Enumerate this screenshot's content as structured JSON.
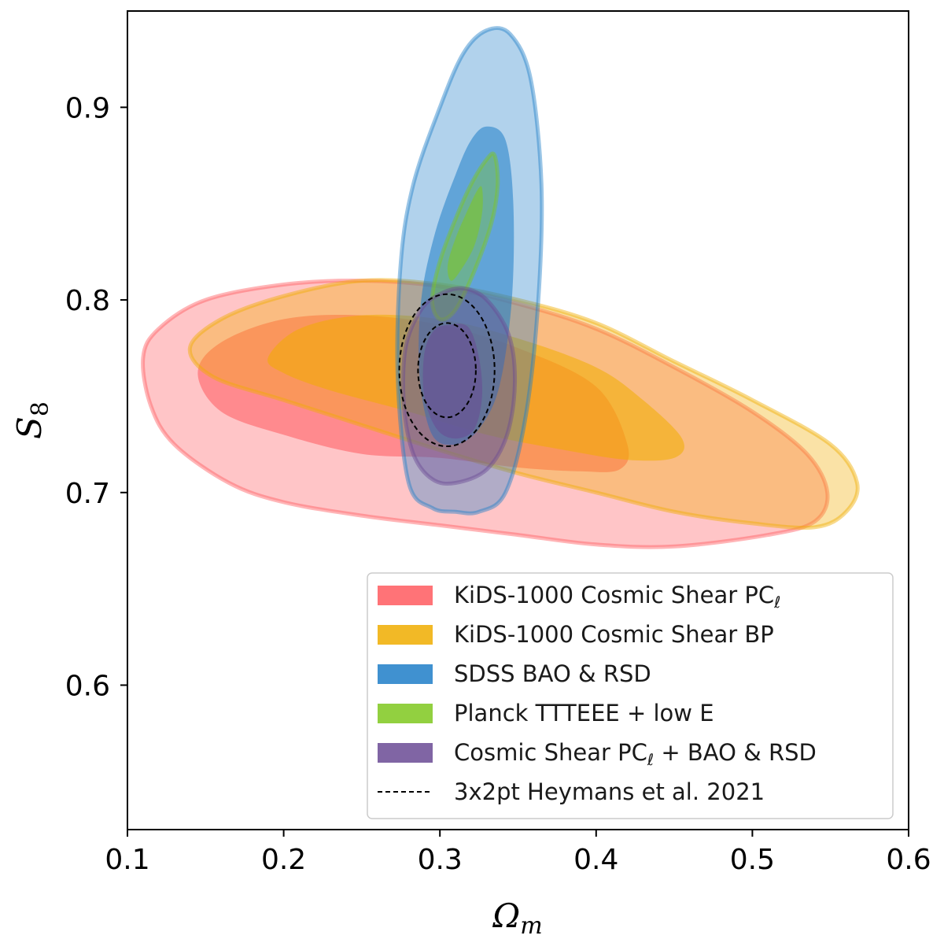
{
  "chart_data": {
    "type": "contour",
    "title": "",
    "xlabel": "Ωm",
    "ylabel": "S8",
    "xlim": [
      0.1,
      0.6
    ],
    "ylim": [
      0.525,
      0.95
    ],
    "xticks": [
      "0.1",
      "0.2",
      "0.3",
      "0.4",
      "0.5",
      "0.6"
    ],
    "yticks": [
      "0.6",
      "0.7",
      "0.8",
      "0.9"
    ],
    "grid": false,
    "legend_position": "lower-right",
    "series": [
      {
        "name": "KiDS-1000 Cosmic Shear PCℓ",
        "legend_label": "KiDS-1000 Cosmic Shear PC",
        "legend_label_suffix": "ℓ",
        "color": "#ff5a5f",
        "contours": {
          "outer": [
            [
              0.11,
              0.77
            ],
            [
              0.12,
              0.785
            ],
            [
              0.15,
              0.8
            ],
            [
              0.2,
              0.808
            ],
            [
              0.25,
              0.81
            ],
            [
              0.3,
              0.807
            ],
            [
              0.35,
              0.798
            ],
            [
              0.4,
              0.785
            ],
            [
              0.45,
              0.765
            ],
            [
              0.5,
              0.742
            ],
            [
              0.535,
              0.72
            ],
            [
              0.548,
              0.7
            ],
            [
              0.54,
              0.685
            ],
            [
              0.51,
              0.678
            ],
            [
              0.45,
              0.672
            ],
            [
              0.4,
              0.673
            ],
            [
              0.35,
              0.678
            ],
            [
              0.3,
              0.683
            ],
            [
              0.25,
              0.688
            ],
            [
              0.2,
              0.695
            ],
            [
              0.165,
              0.705
            ],
            [
              0.13,
              0.725
            ],
            [
              0.115,
              0.745
            ]
          ],
          "inner": [
            [
              0.145,
              0.762
            ],
            [
              0.16,
              0.778
            ],
            [
              0.2,
              0.79
            ],
            [
              0.25,
              0.792
            ],
            [
              0.3,
              0.787
            ],
            [
              0.35,
              0.775
            ],
            [
              0.4,
              0.755
            ],
            [
              0.42,
              0.725
            ],
            [
              0.415,
              0.712
            ],
            [
              0.39,
              0.711
            ],
            [
              0.35,
              0.713
            ],
            [
              0.3,
              0.718
            ],
            [
              0.25,
              0.72
            ],
            [
              0.2,
              0.73
            ],
            [
              0.16,
              0.742
            ]
          ]
        }
      },
      {
        "name": "KiDS-1000 Cosmic Shear BP",
        "legend_label": "KiDS-1000 Cosmic Shear BP",
        "color": "#f0ad00",
        "contours": {
          "outer": [
            [
              0.14,
              0.775
            ],
            [
              0.16,
              0.79
            ],
            [
              0.2,
              0.802
            ],
            [
              0.25,
              0.81
            ],
            [
              0.3,
              0.808
            ],
            [
              0.35,
              0.8
            ],
            [
              0.4,
              0.788
            ],
            [
              0.45,
              0.768
            ],
            [
              0.5,
              0.748
            ],
            [
              0.55,
              0.725
            ],
            [
              0.567,
              0.705
            ],
            [
              0.56,
              0.69
            ],
            [
              0.54,
              0.682
            ],
            [
              0.5,
              0.684
            ],
            [
              0.45,
              0.69
            ],
            [
              0.4,
              0.7
            ],
            [
              0.35,
              0.71
            ],
            [
              0.3,
              0.722
            ],
            [
              0.25,
              0.735
            ],
            [
              0.2,
              0.748
            ],
            [
              0.155,
              0.76
            ]
          ],
          "inner": [
            [
              0.19,
              0.77
            ],
            [
              0.21,
              0.785
            ],
            [
              0.25,
              0.792
            ],
            [
              0.3,
              0.79
            ],
            [
              0.35,
              0.78
            ],
            [
              0.4,
              0.765
            ],
            [
              0.43,
              0.748
            ],
            [
              0.455,
              0.728
            ],
            [
              0.45,
              0.718
            ],
            [
              0.42,
              0.717
            ],
            [
              0.38,
              0.722
            ],
            [
              0.33,
              0.73
            ],
            [
              0.28,
              0.742
            ],
            [
              0.23,
              0.753
            ],
            [
              0.2,
              0.762
            ]
          ]
        }
      },
      {
        "name": "SDSS BAO & RSD",
        "legend_label": "SDSS BAO & RSD",
        "color": "#1f7ec8",
        "contours": {
          "outer": [
            [
              0.33,
              0.94
            ],
            [
              0.345,
              0.938
            ],
            [
              0.358,
              0.915
            ],
            [
              0.365,
              0.86
            ],
            [
              0.363,
              0.8
            ],
            [
              0.355,
              0.74
            ],
            [
              0.342,
              0.7
            ],
            [
              0.325,
              0.69
            ],
            [
              0.31,
              0.69
            ],
            [
              0.295,
              0.692
            ],
            [
              0.28,
              0.705
            ],
            [
              0.273,
              0.76
            ],
            [
              0.275,
              0.82
            ],
            [
              0.283,
              0.86
            ],
            [
              0.3,
              0.9
            ],
            [
              0.315,
              0.928
            ]
          ],
          "inner": [
            [
              0.33,
              0.89
            ],
            [
              0.342,
              0.883
            ],
            [
              0.347,
              0.85
            ],
            [
              0.346,
              0.8
            ],
            [
              0.338,
              0.755
            ],
            [
              0.325,
              0.733
            ],
            [
              0.31,
              0.725
            ],
            [
              0.295,
              0.73
            ],
            [
              0.287,
              0.76
            ],
            [
              0.288,
              0.8
            ],
            [
              0.297,
              0.835
            ],
            [
              0.31,
              0.865
            ],
            [
              0.32,
              0.883
            ]
          ]
        }
      },
      {
        "name": "Planck TTTEEE + low E",
        "legend_label": "Planck TTTEEE + low E",
        "color": "#7fc81f",
        "contours": {
          "outer": [
            [
              0.335,
              0.875
            ],
            [
              0.337,
              0.86
            ],
            [
              0.333,
              0.84
            ],
            [
              0.322,
              0.815
            ],
            [
              0.31,
              0.795
            ],
            [
              0.3,
              0.79
            ],
            [
              0.295,
              0.8
            ],
            [
              0.3,
              0.82
            ],
            [
              0.31,
              0.842
            ],
            [
              0.32,
              0.86
            ],
            [
              0.33,
              0.873
            ]
          ],
          "inner": [
            [
              0.327,
              0.858
            ],
            [
              0.327,
              0.845
            ],
            [
              0.322,
              0.828
            ],
            [
              0.313,
              0.815
            ],
            [
              0.307,
              0.81
            ],
            [
              0.305,
              0.818
            ],
            [
              0.31,
              0.832
            ],
            [
              0.318,
              0.847
            ],
            [
              0.324,
              0.857
            ]
          ]
        }
      },
      {
        "name": "Cosmic Shear PCℓ + BAO & RSD",
        "legend_label": "Cosmic Shear PC",
        "legend_label_suffix": "ℓ",
        "legend_label_tail": " + BAO & RSD",
        "color": "#6a4a94",
        "contours": {
          "outer": [
            [
              0.3,
              0.803
            ],
            [
              0.315,
              0.806
            ],
            [
              0.33,
              0.8
            ],
            [
              0.344,
              0.782
            ],
            [
              0.348,
              0.757
            ],
            [
              0.343,
              0.73
            ],
            [
              0.33,
              0.712
            ],
            [
              0.31,
              0.705
            ],
            [
              0.295,
              0.707
            ],
            [
              0.283,
              0.72
            ],
            [
              0.277,
              0.745
            ],
            [
              0.278,
              0.775
            ],
            [
              0.288,
              0.795
            ]
          ],
          "inner": [
            [
              0.305,
              0.787
            ],
            [
              0.318,
              0.786
            ],
            [
              0.325,
              0.77
            ],
            [
              0.327,
              0.75
            ],
            [
              0.322,
              0.733
            ],
            [
              0.31,
              0.728
            ],
            [
              0.298,
              0.733
            ],
            [
              0.29,
              0.75
            ],
            [
              0.29,
              0.772
            ],
            [
              0.296,
              0.784
            ]
          ]
        }
      },
      {
        "name": "3x2pt Heymans et al. 2021",
        "legend_label": "3x2pt Heymans et al. 2021",
        "color": "#000000",
        "style": "dashed",
        "contours": {
          "outer": {
            "center": [
              0.3045,
              0.7635
            ],
            "radius_x": 0.0305,
            "radius_y": 0.0395
          },
          "inner": {
            "center": [
              0.3045,
              0.7635
            ],
            "radius_x": 0.0185,
            "radius_y": 0.0245
          }
        }
      }
    ]
  }
}
